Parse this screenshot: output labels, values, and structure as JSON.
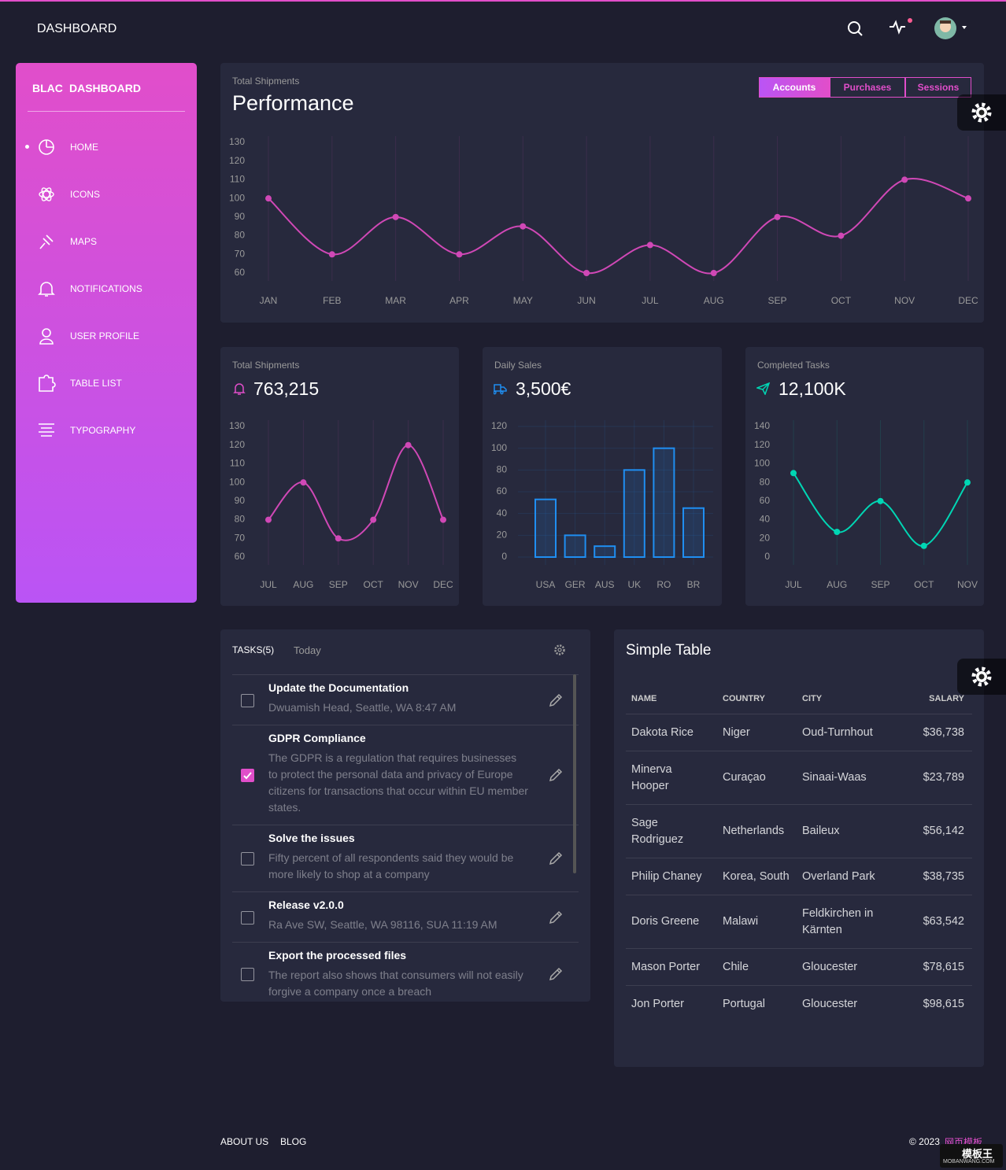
{
  "header": {
    "title": "DASHBOARD"
  },
  "sidebar": {
    "logo": "BLAC",
    "title": "DASHBOARD",
    "items": [
      "HOME",
      "ICONS",
      "MAPS",
      "NOTIFICATIONS",
      "USER PROFILE",
      "TABLE LIST",
      "TYPOGRAPHY"
    ]
  },
  "chart_data": [
    {
      "type": "line",
      "subtitle": "Total Shipments",
      "title": "Performance",
      "tabs": [
        "Accounts",
        "Purchases",
        "Sessions"
      ],
      "categories": [
        "JAN",
        "FEB",
        "MAR",
        "APR",
        "MAY",
        "JUN",
        "JUL",
        "AUG",
        "SEP",
        "OCT",
        "NOV",
        "DEC"
      ],
      "values": [
        100,
        70,
        90,
        70,
        85,
        60,
        75,
        60,
        90,
        80,
        110,
        100
      ],
      "color": "#d048b6",
      "ylim": [
        60,
        130
      ],
      "yticks": [
        60,
        70,
        80,
        90,
        100,
        110,
        120,
        130
      ],
      "grid": "x"
    },
    {
      "type": "line",
      "subtitle": "Total Shipments",
      "title": "763,215",
      "categories": [
        "JUL",
        "AUG",
        "SEP",
        "OCT",
        "NOV",
        "DEC"
      ],
      "values": [
        80,
        100,
        70,
        80,
        120,
        80
      ],
      "color": "#d048b6",
      "ylim": [
        60,
        130
      ],
      "yticks": [
        60,
        70,
        80,
        90,
        100,
        110,
        120,
        130
      ],
      "grid": "x"
    },
    {
      "type": "bar",
      "subtitle": "Daily Sales",
      "title": "3,500€",
      "categories": [
        "USA",
        "GER",
        "AUS",
        "UK",
        "RO",
        "BR"
      ],
      "values": [
        53,
        20,
        10,
        80,
        100,
        45
      ],
      "color": "#1f8ef1",
      "ylim": [
        0,
        120
      ],
      "yticks": [
        0,
        20,
        40,
        60,
        80,
        100,
        120
      ],
      "grid": "both"
    },
    {
      "type": "line",
      "subtitle": "Completed Tasks",
      "title": "12,100K",
      "categories": [
        "JUL",
        "AUG",
        "SEP",
        "OCT",
        "NOV"
      ],
      "values": [
        90,
        27,
        60,
        12,
        80
      ],
      "color": "#00d6b4",
      "ylim": [
        0,
        140
      ],
      "yticks": [
        0,
        20,
        40,
        60,
        80,
        100,
        120,
        140
      ],
      "grid": "x"
    }
  ],
  "tasks": {
    "title": "TASKS(5)",
    "subtitle": "Today",
    "items": [
      {
        "title": "Update the Documentation",
        "description": "Dwuamish Head, Seattle, WA 8:47 AM",
        "checked": false
      },
      {
        "title": "GDPR Compliance",
        "description": "The GDPR is a regulation that requires businesses to protect the personal data and privacy of Europe citizens for transactions that occur within EU member states.",
        "checked": true
      },
      {
        "title": "Solve the issues",
        "description": "Fifty percent of all respondents said they would be more likely to shop at a company",
        "checked": false
      },
      {
        "title": "Release v2.0.0",
        "description": "Ra Ave SW, Seattle, WA 98116, SUA 11:19 AM",
        "checked": false
      },
      {
        "title": "Export the processed files",
        "description": "The report also shows that consumers will not easily forgive a company once a breach",
        "checked": false
      }
    ]
  },
  "table": {
    "title": "Simple Table",
    "columns": [
      "NAME",
      "COUNTRY",
      "CITY",
      "SALARY"
    ],
    "rows": [
      [
        "Dakota Rice",
        "Niger",
        "Oud-Turnhout",
        "$36,738"
      ],
      [
        "Minerva Hooper",
        "Curaçao",
        "Sinaai-Waas",
        "$23,789"
      ],
      [
        "Sage Rodriguez",
        "Netherlands",
        "Baileux",
        "$56,142"
      ],
      [
        "Philip Chaney",
        "Korea, South",
        "Overland Park",
        "$38,735"
      ],
      [
        "Doris Greene",
        "Malawi",
        "Feldkirchen in Kärnten",
        "$63,542"
      ],
      [
        "Mason Porter",
        "Chile",
        "Gloucester",
        "$78,615"
      ],
      [
        "Jon Porter",
        "Portugal",
        "Gloucester",
        "$98,615"
      ]
    ]
  },
  "footer": {
    "links": [
      "ABOUT US",
      "BLOG"
    ],
    "copyright": "© 2023",
    "credit": "网页模板"
  },
  "watermark": {
    "logo": "模板王",
    "url": "MOBANWANG.COM"
  }
}
